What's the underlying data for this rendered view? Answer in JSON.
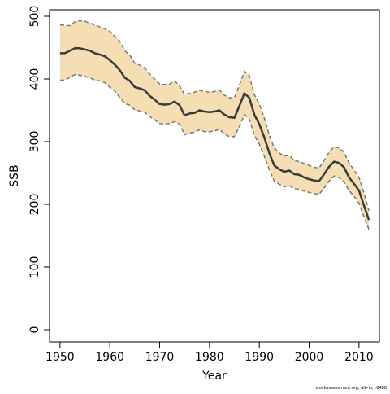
{
  "chart_data": {
    "type": "line",
    "xlabel": "Year",
    "ylabel": "SSB",
    "footnote": "stockassessment.org, alb-io, r6488",
    "x": [
      1950,
      1951,
      1952,
      1953,
      1954,
      1955,
      1956,
      1957,
      1958,
      1959,
      1960,
      1961,
      1962,
      1963,
      1964,
      1965,
      1966,
      1967,
      1968,
      1969,
      1970,
      1971,
      1972,
      1973,
      1974,
      1975,
      1976,
      1977,
      1978,
      1979,
      1980,
      1981,
      1982,
      1983,
      1984,
      1985,
      1986,
      1987,
      1988,
      1989,
      1990,
      1991,
      1992,
      1993,
      1994,
      1995,
      1996,
      1997,
      1998,
      1999,
      2000,
      2001,
      2002,
      2003,
      2004,
      2005,
      2006,
      2007,
      2008,
      2009,
      2010,
      2011,
      2012
    ],
    "series": [
      {
        "color": "#3a3a3a",
        "values": [
          441,
          441,
          445,
          449,
          449,
          447,
          445,
          441,
          439,
          436,
          430,
          423,
          414,
          402,
          397,
          387,
          385,
          382,
          373,
          367,
          360,
          359,
          360,
          364,
          358,
          342,
          345,
          346,
          350,
          348,
          347,
          348,
          350,
          343,
          339,
          338,
          357,
          377,
          370,
          343,
          328,
          307,
          282,
          262,
          256,
          252,
          254,
          248,
          247,
          243,
          240,
          238,
          237,
          248,
          260,
          268,
          266,
          259,
          243,
          233,
          222,
          198,
          175
        ]
      }
    ],
    "band": {
      "color": "#f5deb3",
      "line_color": "#777777",
      "upper": [
        486,
        486,
        485,
        491,
        493,
        492,
        489,
        486,
        483,
        480,
        476,
        468,
        460,
        445,
        438,
        425,
        422,
        418,
        408,
        400,
        392,
        391,
        392,
        397,
        389,
        375,
        377,
        379,
        382,
        380,
        379,
        380,
        382,
        374,
        370,
        370,
        390,
        412,
        405,
        375,
        360,
        338,
        310,
        290,
        282,
        277,
        278,
        270,
        268,
        265,
        262,
        259,
        258,
        270,
        283,
        292,
        290,
        283,
        266,
        255,
        243,
        218,
        190
      ],
      "lower": [
        398,
        398,
        403,
        407,
        406,
        404,
        402,
        398,
        397,
        394,
        387,
        381,
        370,
        361,
        358,
        351,
        349,
        347,
        340,
        335,
        329,
        328,
        329,
        332,
        328,
        311,
        314,
        315,
        319,
        316,
        316,
        317,
        320,
        312,
        308,
        308,
        324,
        343,
        336,
        310,
        296,
        277,
        255,
        237,
        232,
        228,
        230,
        225,
        224,
        221,
        219,
        217,
        216,
        226,
        237,
        245,
        243,
        236,
        222,
        213,
        202,
        180,
        160
      ]
    },
    "xlim": [
      1947.9,
      2014.1
    ],
    "ylim": [
      -19.5,
      510.4
    ],
    "xticks": [
      1950,
      1960,
      1970,
      1980,
      1990,
      2000,
      2010
    ],
    "yticks": [
      0,
      100,
      200,
      300,
      400,
      500
    ]
  }
}
